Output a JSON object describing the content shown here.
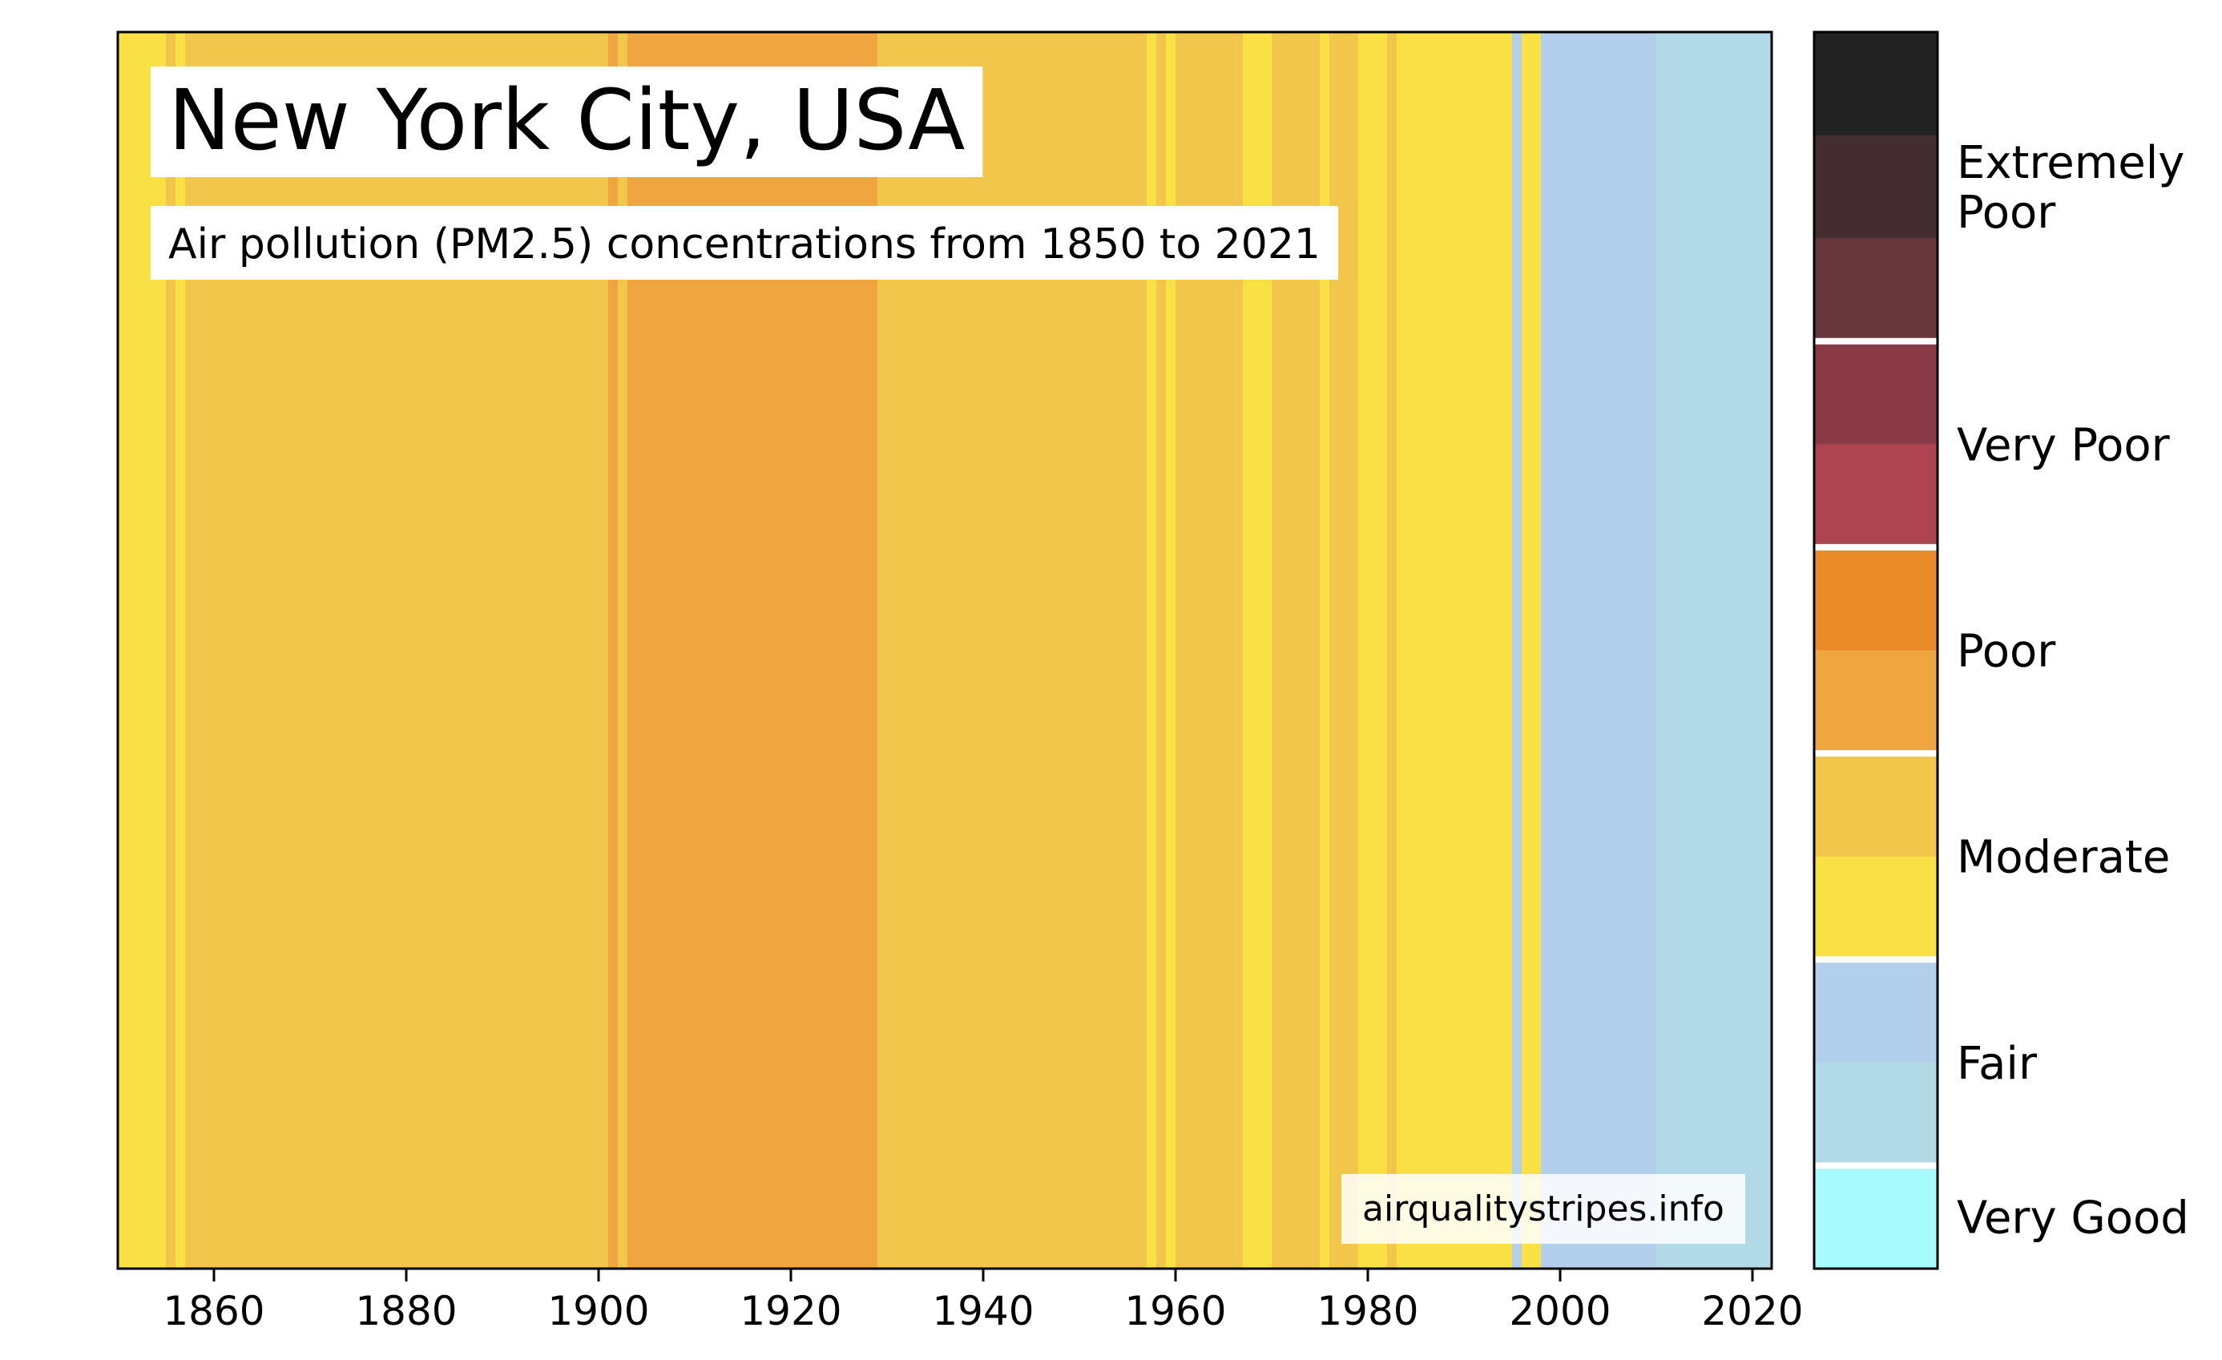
{
  "chart_data": {
    "type": "heatmap",
    "title": "New York City, USA",
    "subtitle": "Air pollution (PM2.5) concentrations from 1850 to 2021",
    "watermark": "airqualitystripes.info",
    "x_ticks": [
      1860,
      1880,
      1900,
      1920,
      1940,
      1960,
      1980,
      2000,
      2020
    ],
    "xlim": [
      1850,
      2022
    ],
    "colors": {
      "moderate_light": "#f8e045",
      "moderate_dark": "#f1c64a",
      "poor_light": "#efa640",
      "fair_dark": "#b2d0ec",
      "fair_light": "#b2d9e6"
    },
    "stripes": [
      {
        "from": 1850,
        "to": 1855,
        "color": "#f8e045"
      },
      {
        "from": 1855,
        "to": 1856,
        "color": "#f1c64a"
      },
      {
        "from": 1856,
        "to": 1857,
        "color": "#f8e045"
      },
      {
        "from": 1857,
        "to": 1901,
        "color": "#f1c64a"
      },
      {
        "from": 1901,
        "to": 1902,
        "color": "#efa640"
      },
      {
        "from": 1902,
        "to": 1903,
        "color": "#f1c64a"
      },
      {
        "from": 1903,
        "to": 1929,
        "color": "#efa640"
      },
      {
        "from": 1929,
        "to": 1957,
        "color": "#f1c64a"
      },
      {
        "from": 1957,
        "to": 1958,
        "color": "#f8e045"
      },
      {
        "from": 1958,
        "to": 1959,
        "color": "#f1c64a"
      },
      {
        "from": 1959,
        "to": 1960,
        "color": "#f8e045"
      },
      {
        "from": 1960,
        "to": 1967,
        "color": "#f1c64a"
      },
      {
        "from": 1967,
        "to": 1970,
        "color": "#f8e045"
      },
      {
        "from": 1970,
        "to": 1975,
        "color": "#f1c64a"
      },
      {
        "from": 1975,
        "to": 1976,
        "color": "#f8e045"
      },
      {
        "from": 1976,
        "to": 1979,
        "color": "#f1c64a"
      },
      {
        "from": 1979,
        "to": 1982,
        "color": "#f8e045"
      },
      {
        "from": 1982,
        "to": 1983,
        "color": "#f1c64a"
      },
      {
        "from": 1983,
        "to": 1995,
        "color": "#f8e045"
      },
      {
        "from": 1995,
        "to": 1996,
        "color": "#b2d0ec"
      },
      {
        "from": 1996,
        "to": 1998,
        "color": "#f8e045"
      },
      {
        "from": 1998,
        "to": 2010,
        "color": "#b2d0ec"
      },
      {
        "from": 2010,
        "to": 2022,
        "color": "#b2d9e6"
      }
    ],
    "legend": {
      "colors_top_to_bottom": [
        "#232323",
        "#432d30",
        "#68373b",
        "#893a46",
        "#ae4450",
        "#e88b28",
        "#efa640",
        "#f1c64a",
        "#f8e045",
        "#b2d0ec",
        "#b2d9e6",
        "#a8fbfd"
      ],
      "labels": [
        {
          "text": [
            "Extremely",
            "Poor"
          ],
          "segments": [
            0,
            2
          ]
        },
        {
          "text": [
            "Very Poor"
          ],
          "segments": [
            3,
            4
          ]
        },
        {
          "text": [
            "Poor"
          ],
          "segments": [
            5,
            6
          ]
        },
        {
          "text": [
            "Moderate"
          ],
          "segments": [
            7,
            8
          ]
        },
        {
          "text": [
            "Fair"
          ],
          "segments": [
            9,
            10
          ]
        },
        {
          "text": [
            "Very Good"
          ],
          "segments": [
            11,
            11
          ]
        }
      ],
      "separators_after_segment": [
        2,
        4,
        6,
        8,
        10
      ]
    }
  }
}
